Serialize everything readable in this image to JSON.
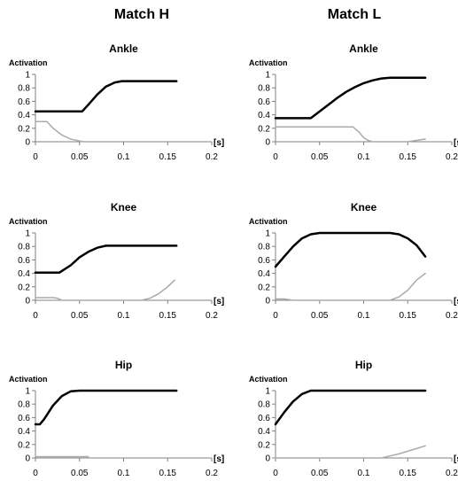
{
  "columns": [
    "Match H",
    "Match L"
  ],
  "chart_data": [
    {
      "type": "line",
      "title": "Ankle",
      "ylabel": "Activation",
      "xunit": "[s]",
      "xlim": [
        0,
        0.2
      ],
      "ylim": [
        0,
        1
      ],
      "xticks": [
        "0",
        "0.05",
        "0.1",
        "0.15",
        "0.2"
      ],
      "yticks": [
        "0",
        "0.2",
        "0.4",
        "0.6",
        "0.8",
        "1"
      ],
      "series": [
        {
          "color": "#000000",
          "x": [
            0,
            0.053,
            0.06,
            0.07,
            0.08,
            0.09,
            0.098,
            0.16
          ],
          "y": [
            0.45,
            0.45,
            0.55,
            0.7,
            0.82,
            0.88,
            0.9,
            0.9
          ]
        },
        {
          "color": "#aaaaaa",
          "x": [
            0,
            0.013,
            0.02,
            0.03,
            0.04,
            0.05,
            0.055
          ],
          "y": [
            0.3,
            0.3,
            0.2,
            0.1,
            0.04,
            0.01,
            0
          ]
        }
      ]
    },
    {
      "type": "line",
      "title": "Ankle",
      "ylabel": "Activation",
      "xunit": "[s",
      "xlim": [
        0,
        0.2
      ],
      "ylim": [
        0,
        1
      ],
      "xticks": [
        "0",
        "0.05",
        "0.1",
        "0.15",
        "0.2"
      ],
      "yticks": [
        "0",
        "0.2",
        "0.4",
        "0.6",
        "0.8",
        "1"
      ],
      "series": [
        {
          "color": "#000000",
          "x": [
            0,
            0.04,
            0.05,
            0.06,
            0.07,
            0.08,
            0.09,
            0.1,
            0.11,
            0.12,
            0.13,
            0.17
          ],
          "y": [
            0.35,
            0.35,
            0.45,
            0.55,
            0.65,
            0.74,
            0.81,
            0.87,
            0.91,
            0.94,
            0.95,
            0.95
          ]
        },
        {
          "color": "#aaaaaa",
          "x": [
            0,
            0.088,
            0.095,
            0.1,
            0.105,
            0.11,
            0.15,
            0.165,
            0.17
          ],
          "y": [
            0.22,
            0.22,
            0.14,
            0.06,
            0.02,
            0,
            0,
            0.03,
            0.04
          ]
        }
      ]
    },
    {
      "type": "line",
      "title": "Knee",
      "ylabel": "Activation",
      "xunit": "[s]",
      "xlim": [
        0,
        0.2
      ],
      "ylim": [
        0,
        1
      ],
      "xticks": [
        "0",
        "0.05",
        "0.1",
        "0.15",
        "0.2"
      ],
      "yticks": [
        "0",
        "0.2",
        "0.4",
        "0.6",
        "0.8",
        "1"
      ],
      "series": [
        {
          "color": "#000000",
          "x": [
            0,
            0.027,
            0.04,
            0.05,
            0.06,
            0.07,
            0.08,
            0.16
          ],
          "y": [
            0.41,
            0.41,
            0.52,
            0.64,
            0.72,
            0.78,
            0.81,
            0.81
          ]
        },
        {
          "color": "#aaaaaa",
          "x": [
            0,
            0.01,
            0.02,
            0.025,
            0.03,
            0.12,
            0.13,
            0.14,
            0.15,
            0.158
          ],
          "y": [
            0.04,
            0.04,
            0.04,
            0.03,
            0,
            0,
            0.03,
            0.1,
            0.2,
            0.3
          ]
        }
      ]
    },
    {
      "type": "line",
      "title": "Knee",
      "ylabel": "Activation",
      "xunit": "[s",
      "xlim": [
        0,
        0.2
      ],
      "ylim": [
        0,
        1
      ],
      "xticks": [
        "0",
        "0.05",
        "0.1",
        "0.15",
        "0.2"
      ],
      "yticks": [
        "0",
        "0.2",
        "0.4",
        "0.6",
        "0.8",
        "1"
      ],
      "series": [
        {
          "color": "#000000",
          "x": [
            0,
            0.01,
            0.02,
            0.03,
            0.04,
            0.05,
            0.13,
            0.14,
            0.15,
            0.16,
            0.17
          ],
          "y": [
            0.5,
            0.65,
            0.8,
            0.92,
            0.98,
            1,
            1,
            0.98,
            0.92,
            0.82,
            0.65
          ]
        },
        {
          "color": "#aaaaaa",
          "x": [
            0,
            0.01,
            0.02,
            0.13,
            0.14,
            0.15,
            0.16,
            0.17
          ],
          "y": [
            0.02,
            0.02,
            0,
            0,
            0.05,
            0.15,
            0.3,
            0.4
          ]
        }
      ]
    },
    {
      "type": "line",
      "title": "Hip",
      "ylabel": "Activation",
      "xunit": "[s]",
      "xlim": [
        0,
        0.2
      ],
      "ylim": [
        0,
        1
      ],
      "xticks": [
        "0",
        "0.05",
        "0.1",
        "0.15",
        "0.2"
      ],
      "yticks": [
        "0",
        "0.2",
        "0.4",
        "0.6",
        "0.8",
        "1"
      ],
      "series": [
        {
          "color": "#000000",
          "x": [
            0,
            0.005,
            0.01,
            0.02,
            0.03,
            0.04,
            0.05,
            0.16
          ],
          "y": [
            0.5,
            0.5,
            0.58,
            0.78,
            0.92,
            0.99,
            1,
            1
          ]
        },
        {
          "color": "#aaaaaa",
          "x": [
            0,
            0.06
          ],
          "y": [
            0.02,
            0.02
          ]
        }
      ]
    },
    {
      "type": "line",
      "title": "Hip",
      "ylabel": "Activation",
      "xunit": "[s",
      "xlim": [
        0,
        0.2
      ],
      "ylim": [
        0,
        1
      ],
      "xticks": [
        "0",
        "0.05",
        "0.1",
        "0.15",
        "0.2"
      ],
      "yticks": [
        "0",
        "0.2",
        "0.4",
        "0.6",
        "0.8",
        "1"
      ],
      "series": [
        {
          "color": "#000000",
          "x": [
            0,
            0.01,
            0.02,
            0.03,
            0.04,
            0.05,
            0.17
          ],
          "y": [
            0.5,
            0.68,
            0.84,
            0.95,
            1,
            1,
            1
          ]
        },
        {
          "color": "#aaaaaa",
          "x": [
            0,
            0.12,
            0.13,
            0.14,
            0.15,
            0.16,
            0.17
          ],
          "y": [
            0,
            0,
            0.03,
            0.06,
            0.1,
            0.14,
            0.18
          ]
        }
      ]
    }
  ]
}
